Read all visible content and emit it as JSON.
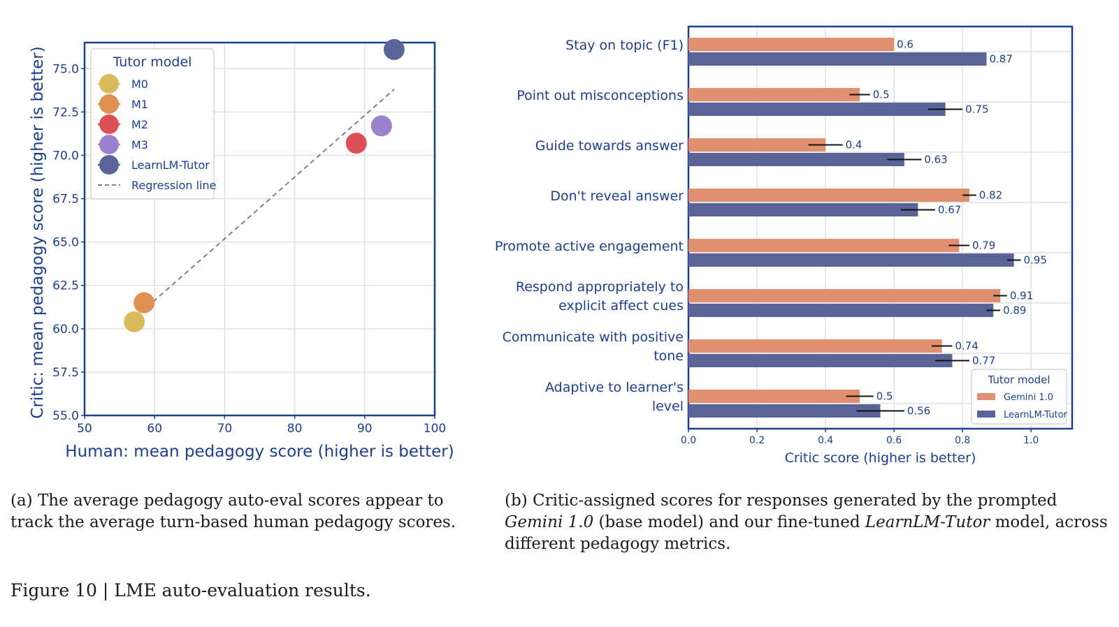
{
  "chart_data": [
    {
      "type": "scatter",
      "xlabel": "Human: mean pedagogy score (higher is better)",
      "ylabel": "Critic: mean pedagogy score (higher is better)",
      "xlim": [
        50,
        100
      ],
      "ylim": [
        55,
        76.5
      ],
      "xticks": [
        50,
        60,
        70,
        80,
        90,
        100
      ],
      "yticks": [
        55.0,
        57.5,
        60.0,
        62.5,
        65.0,
        67.5,
        70.0,
        72.5,
        75.0
      ],
      "xtick_labels": [
        "50",
        "60",
        "70",
        "80",
        "90",
        "100"
      ],
      "ytick_labels": [
        "55.0",
        "57.5",
        "60.0",
        "62.5",
        "65.0",
        "67.5",
        "70.0",
        "72.5",
        "75.0"
      ],
      "grid": true,
      "legend": {
        "title": "Tutor model",
        "placement": "top-left",
        "regression_label": "Regression line"
      },
      "series": [
        {
          "name": "M0",
          "color": "#d8bb5c",
          "x": 57.1,
          "y": 60.4
        },
        {
          "name": "M1",
          "color": "#dd9050",
          "x": 58.5,
          "y": 61.5
        },
        {
          "name": "M2",
          "color": "#dd4f57",
          "x": 88.8,
          "y": 70.7
        },
        {
          "name": "M3",
          "color": "#9a82cc",
          "x": 92.4,
          "y": 71.7
        },
        {
          "name": "LearnLM-Tutor",
          "color": "#5a6499",
          "x": 94.2,
          "y": 76.1
        }
      ],
      "regression_line": {
        "x": [
          57.1,
          94.2
        ],
        "y": [
          60.6,
          73.8
        ],
        "color": "#808080"
      }
    },
    {
      "type": "bar",
      "orientation": "horizontal",
      "xlabel": "Critic score (higher is better)",
      "xlim": [
        0,
        1.12
      ],
      "xticks": [
        0.0,
        0.2,
        0.4,
        0.6,
        0.8,
        1.0
      ],
      "xtick_labels": [
        "0.0",
        "0.2",
        "0.4",
        "0.6",
        "0.8",
        "1.0"
      ],
      "grid": true,
      "categories": [
        [
          "Stay on topic (F1)"
        ],
        [
          "Point out misconceptions"
        ],
        [
          "Guide towards answer"
        ],
        [
          "Don't reveal answer"
        ],
        [
          "Promote active engagement"
        ],
        [
          "Respond appropriately to",
          "explicit affect cues"
        ],
        [
          "Communicate with positive",
          "tone"
        ],
        [
          "Adaptive to learner's",
          "level"
        ]
      ],
      "series": [
        {
          "name": "Gemini 1.0",
          "color": "#e08f6f",
          "values": [
            0.6,
            0.5,
            0.4,
            0.82,
            0.79,
            0.91,
            0.74,
            0.5
          ],
          "labels": [
            "0.6",
            "0.5",
            "0.4",
            "0.82",
            "0.79",
            "0.91",
            "0.74",
            "0.5"
          ],
          "errors": [
            0,
            0.03,
            0.05,
            0.02,
            0.03,
            0.02,
            0.03,
            0.04
          ]
        },
        {
          "name": "LearnLM-Tutor",
          "color": "#5a6499",
          "values": [
            0.87,
            0.75,
            0.63,
            0.67,
            0.95,
            0.89,
            0.77,
            0.56
          ],
          "labels": [
            "0.87",
            "0.75",
            "0.63",
            "0.67",
            "0.95",
            "0.89",
            "0.77",
            "0.56"
          ],
          "errors": [
            0,
            0.05,
            0.05,
            0.05,
            0.02,
            0.02,
            0.05,
            0.07
          ]
        }
      ],
      "legend": {
        "title": "Tutor model",
        "placement": "bottom-right"
      }
    }
  ],
  "captions": {
    "a": "(a) The average pedagogy auto-eval scores appear to track the average turn-based human pedagogy scores.",
    "b_part1": "(b) Critic-assigned scores for responses generated by the prompted ",
    "b_em1": "Gemini 1.0",
    "b_part2": " (base model) and our fine-tuned ",
    "b_em2": "LearnLM-Tutor",
    "b_part3": " model, across different pedagogy metrics.",
    "figure": "Figure 10 | LME auto-evaluation results."
  },
  "colors": {
    "axis": "#1b3f8f",
    "grid": "#e0e0e0"
  }
}
